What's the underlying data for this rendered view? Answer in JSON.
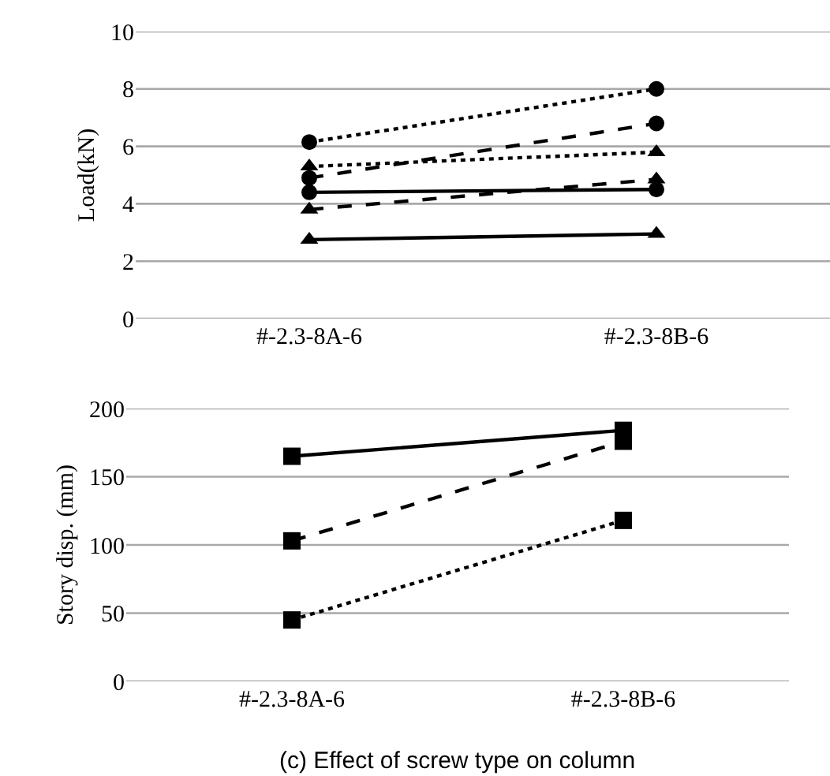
{
  "chart_data": [
    {
      "type": "line",
      "ylabel": "Load(kN)",
      "categories": [
        "#-2.3-8A-6",
        "#-2.3-8B-6"
      ],
      "ylim": [
        0,
        10
      ],
      "yticks": [
        0,
        2,
        4,
        6,
        8,
        10
      ],
      "grid": "y",
      "series": [
        {
          "color": "#000000",
          "marker": "circle",
          "line_style": "dotted",
          "values": [
            6.15,
            8.0
          ]
        },
        {
          "color": "#000000",
          "marker": "circle",
          "line_style": "dashed",
          "values": [
            4.9,
            6.8
          ]
        },
        {
          "color": "#000000",
          "marker": "triangle",
          "line_style": "dotted",
          "values": [
            5.3,
            5.8
          ]
        },
        {
          "color": "#000000",
          "marker": "circle",
          "line_style": "solid",
          "values": [
            4.4,
            4.5
          ]
        },
        {
          "color": "#000000",
          "marker": "triangle",
          "line_style": "dashed",
          "values": [
            3.8,
            4.85
          ]
        },
        {
          "color": "#000000",
          "marker": "triangle",
          "line_style": "solid",
          "values": [
            2.75,
            2.95
          ]
        }
      ]
    },
    {
      "type": "line",
      "ylabel": "Story disp. (mm)",
      "categories": [
        "#-2.3-8A-6",
        "#-2.3-8B-6"
      ],
      "ylim": [
        0,
        200
      ],
      "yticks": [
        0,
        50,
        100,
        150,
        200
      ],
      "grid": "y",
      "annotations": [
        "(c) Effect of screw type on column"
      ],
      "series": [
        {
          "color": "#000000",
          "marker": "square",
          "line_style": "solid",
          "values": [
            165,
            184
          ]
        },
        {
          "color": "#000000",
          "marker": "square",
          "line_style": "dashed",
          "values": [
            103,
            176
          ]
        },
        {
          "color": "#000000",
          "marker": "square",
          "line_style": "dotted",
          "values": [
            45,
            118
          ]
        }
      ]
    }
  ]
}
